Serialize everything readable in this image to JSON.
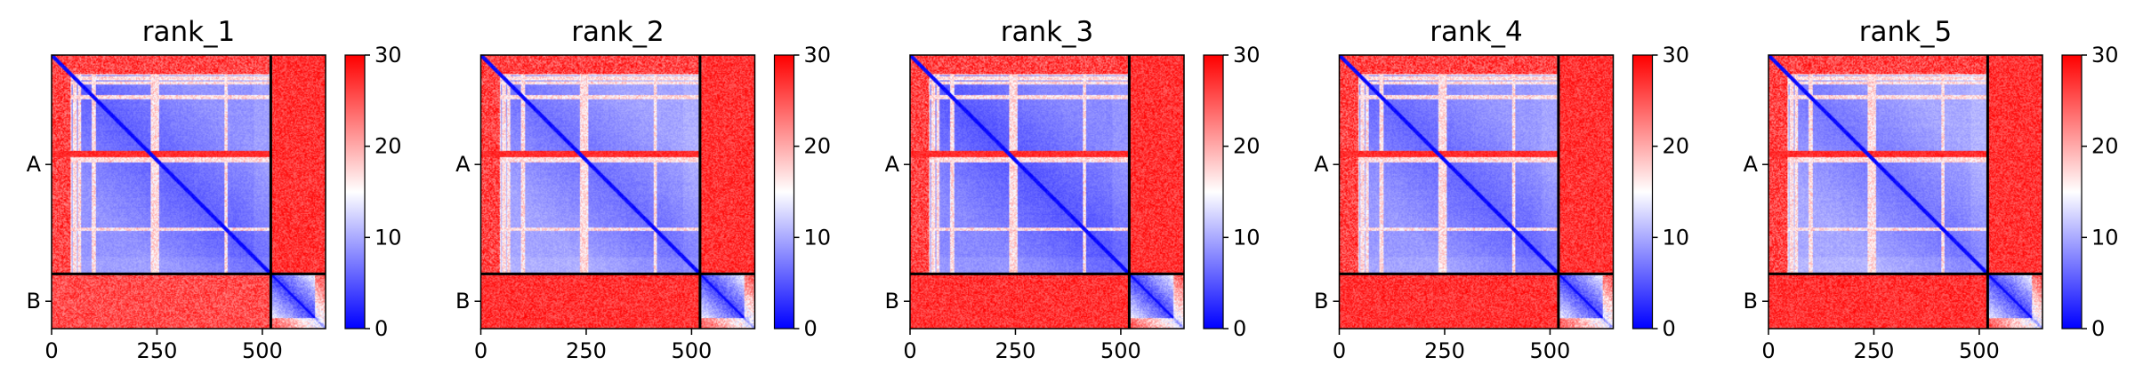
{
  "chart_data": [
    {
      "type": "heatmap",
      "title": "rank_1",
      "xlabel": "",
      "ylabel": "",
      "x_tick_labels": [
        "0",
        "250",
        "500"
      ],
      "y_tick_labels": [
        "A",
        "B"
      ],
      "chains": [
        {
          "name": "A",
          "length": 520
        },
        {
          "name": "B",
          "length": 130
        }
      ],
      "colorbar": {
        "colormap": "bwr",
        "vmin": 0,
        "vmax": 30,
        "tick_labels": [
          "0",
          "10",
          "20",
          "30"
        ]
      },
      "profile": {
        "variant": 0
      }
    },
    {
      "type": "heatmap",
      "title": "rank_2",
      "xlabel": "",
      "ylabel": "",
      "x_tick_labels": [
        "0",
        "250",
        "500"
      ],
      "y_tick_labels": [
        "A",
        "B"
      ],
      "chains": [
        {
          "name": "A",
          "length": 520
        },
        {
          "name": "B",
          "length": 130
        }
      ],
      "colorbar": {
        "colormap": "bwr",
        "vmin": 0,
        "vmax": 30,
        "tick_labels": [
          "0",
          "10",
          "20",
          "30"
        ]
      },
      "profile": {
        "variant": 1
      }
    },
    {
      "type": "heatmap",
      "title": "rank_3",
      "xlabel": "",
      "ylabel": "",
      "x_tick_labels": [
        "0",
        "250",
        "500"
      ],
      "y_tick_labels": [
        "A",
        "B"
      ],
      "chains": [
        {
          "name": "A",
          "length": 520
        },
        {
          "name": "B",
          "length": 130
        }
      ],
      "colorbar": {
        "colormap": "bwr",
        "vmin": 0,
        "vmax": 30,
        "tick_labels": [
          "0",
          "10",
          "20",
          "30"
        ]
      },
      "profile": {
        "variant": 2
      }
    },
    {
      "type": "heatmap",
      "title": "rank_4",
      "xlabel": "",
      "ylabel": "",
      "x_tick_labels": [
        "0",
        "250",
        "500"
      ],
      "y_tick_labels": [
        "A",
        "B"
      ],
      "chains": [
        {
          "name": "A",
          "length": 520
        },
        {
          "name": "B",
          "length": 130
        }
      ],
      "colorbar": {
        "colormap": "bwr",
        "vmin": 0,
        "vmax": 30,
        "tick_labels": [
          "0",
          "10",
          "20",
          "30"
        ]
      },
      "profile": {
        "variant": 3
      }
    },
    {
      "type": "heatmap",
      "title": "rank_5",
      "xlabel": "",
      "ylabel": "",
      "x_tick_labels": [
        "0",
        "250",
        "500"
      ],
      "y_tick_labels": [
        "A",
        "B"
      ],
      "chains": [
        {
          "name": "A",
          "length": 520
        },
        {
          "name": "B",
          "length": 130
        }
      ],
      "colorbar": {
        "colormap": "bwr",
        "vmin": 0,
        "vmax": 30,
        "tick_labels": [
          "0",
          "10",
          "20",
          "30"
        ]
      },
      "profile": {
        "variant": 4
      }
    }
  ]
}
